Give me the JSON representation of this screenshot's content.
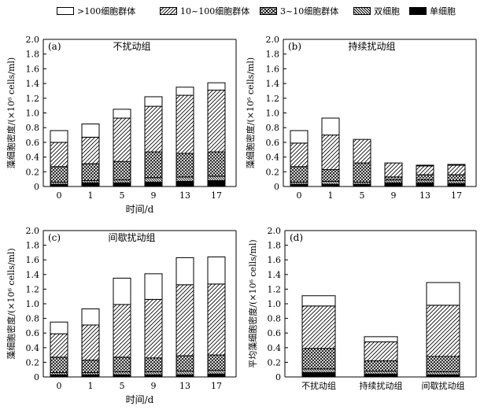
{
  "legend": [
    {
      "label": ">100细胞群体",
      "pattern": "white"
    },
    {
      "label": "10~100细胞群体",
      "pattern": "diag"
    },
    {
      "label": "3~10细胞群体",
      "pattern": "cross"
    },
    {
      "label": "双细胞",
      "pattern": "back"
    },
    {
      "label": "单细胞",
      "pattern": "black"
    }
  ],
  "series_names": [
    ">100细胞群体",
    "10~100细胞群体",
    "3~10细胞群体",
    "双细胞",
    "单细胞"
  ],
  "chart_data": [
    {
      "type": "bar",
      "stacked": true,
      "panel": "(a)",
      "title": "不扰动组",
      "xlabel": "时间/d",
      "ylabel": "藻细胞密度/(×10⁶ cells/ml)",
      "ylim": [
        0,
        2.0
      ],
      "yticks": [
        "0",
        "0.2",
        "0.4",
        "0.6",
        "0.8",
        "1.0",
        "1.2",
        "1.4",
        "1.6",
        "1.8",
        "2.0"
      ],
      "categories": [
        "0",
        "1",
        "5",
        "9",
        "13",
        "17"
      ],
      "series": [
        {
          "name": "单细胞",
          "values": [
            0.03,
            0.05,
            0.05,
            0.06,
            0.07,
            0.08
          ]
        },
        {
          "name": "双细胞",
          "values": [
            0.03,
            0.03,
            0.04,
            0.06,
            0.06,
            0.06
          ]
        },
        {
          "name": "3~10细胞群体",
          "values": [
            0.21,
            0.23,
            0.25,
            0.35,
            0.32,
            0.33
          ]
        },
        {
          "name": "10~100细胞群体",
          "values": [
            0.33,
            0.36,
            0.59,
            0.62,
            0.79,
            0.84
          ]
        },
        {
          "name": ">100细胞群体",
          "values": [
            0.16,
            0.18,
            0.12,
            0.13,
            0.11,
            0.1
          ]
        }
      ]
    },
    {
      "type": "bar",
      "stacked": true,
      "panel": "(b)",
      "title": "持续扰动组",
      "xlabel": "",
      "ylabel": "藻细胞密度/(×10⁶ cells/ml)",
      "ylim": [
        0,
        2.0
      ],
      "yticks": [
        "0",
        "0.2",
        "0.4",
        "0.6",
        "0.8",
        "1.0",
        "1.2",
        "1.4",
        "1.6",
        "1.8",
        "2.0"
      ],
      "categories": [
        "0",
        "1",
        "5",
        "9",
        "13",
        "17"
      ],
      "series": [
        {
          "name": "单细胞",
          "values": [
            0.03,
            0.03,
            0.03,
            0.05,
            0.05,
            0.04
          ]
        },
        {
          "name": "双细胞",
          "values": [
            0.03,
            0.04,
            0.03,
            0.04,
            0.04,
            0.04
          ]
        },
        {
          "name": "3~10细胞群体",
          "values": [
            0.21,
            0.16,
            0.26,
            0.04,
            0.07,
            0.08
          ]
        },
        {
          "name": "10~100细胞群体",
          "values": [
            0.32,
            0.47,
            0.32,
            0.19,
            0.12,
            0.13
          ]
        },
        {
          "name": ">100细胞群体",
          "values": [
            0.17,
            0.23,
            0.0,
            0.0,
            0.01,
            0.01
          ]
        }
      ]
    },
    {
      "type": "bar",
      "stacked": true,
      "panel": "(c)",
      "title": "间歇扰动组",
      "xlabel": "时间/d",
      "ylabel": "藻细胞密度/(×10⁶ cells/ml)",
      "ylim": [
        0,
        2.0
      ],
      "yticks": [
        "0",
        "0.2",
        "0.4",
        "0.6",
        "0.8",
        "1.0",
        "1.2",
        "1.4",
        "1.6",
        "1.8",
        "2.0"
      ],
      "categories": [
        "0",
        "1",
        "5",
        "9",
        "13",
        "17"
      ],
      "series": [
        {
          "name": "单细胞",
          "values": [
            0.03,
            0.03,
            0.03,
            0.03,
            0.03,
            0.04
          ]
        },
        {
          "name": "双细胞",
          "values": [
            0.03,
            0.03,
            0.04,
            0.04,
            0.05,
            0.05
          ]
        },
        {
          "name": "3~10细胞群体",
          "values": [
            0.21,
            0.17,
            0.2,
            0.19,
            0.21,
            0.21
          ]
        },
        {
          "name": "10~100细胞群体",
          "values": [
            0.32,
            0.48,
            0.72,
            0.8,
            0.97,
            0.97
          ]
        },
        {
          "name": ">100细胞群体",
          "values": [
            0.16,
            0.22,
            0.36,
            0.35,
            0.37,
            0.37
          ]
        }
      ]
    },
    {
      "type": "bar",
      "stacked": true,
      "panel": "(d)",
      "title": "",
      "xlabel": "",
      "ylabel": "平均藻细胞密度/(×10⁶ cells/ml)",
      "ylim": [
        0,
        2.0
      ],
      "yticks": [
        "0",
        "0.2",
        "0.4",
        "0.6",
        "0.8",
        "1.0",
        "1.2",
        "1.4",
        "1.6",
        "1.8",
        "2.0"
      ],
      "categories": [
        "不扰动组",
        "持续扰动组",
        "间歇扰动组"
      ],
      "series": [
        {
          "name": "单细胞",
          "values": [
            0.06,
            0.04,
            0.03
          ]
        },
        {
          "name": "双细胞",
          "values": [
            0.05,
            0.04,
            0.04
          ]
        },
        {
          "name": "3~10细胞群体",
          "values": [
            0.28,
            0.14,
            0.21
          ]
        },
        {
          "name": "10~100细胞群体",
          "values": [
            0.58,
            0.26,
            0.7
          ]
        },
        {
          "name": ">100细胞群体",
          "values": [
            0.14,
            0.07,
            0.31
          ]
        }
      ]
    }
  ]
}
